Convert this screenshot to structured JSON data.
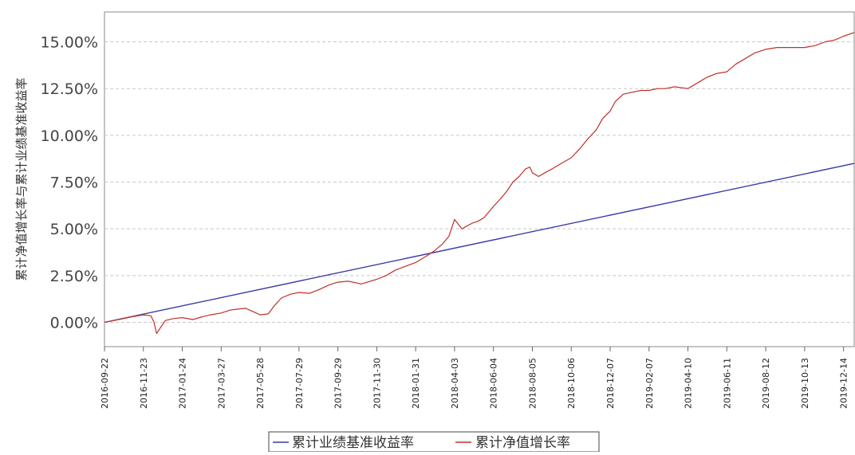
{
  "chart_data": {
    "type": "line",
    "title": "",
    "xlabel": "",
    "ylabel": "累计净值增长率与累计业绩基准收益率",
    "ylim": [
      -1.3,
      16.6
    ],
    "yticks": [
      "0.00%",
      "2.50%",
      "5.00%",
      "7.50%",
      "10.00%",
      "12.50%",
      "15.00%"
    ],
    "ytick_values": [
      0,
      2.5,
      5,
      7.5,
      10,
      12.5,
      15
    ],
    "x_start": "2016-09-22",
    "x_end": "2019-12-31",
    "xticks": [
      "2016-09-22",
      "2016-11-23",
      "2017-01-24",
      "2017-03-27",
      "2017-05-28",
      "2017-07-29",
      "2017-09-29",
      "2017-11-30",
      "2018-01-31",
      "2018-04-03",
      "2018-06-04",
      "2018-08-05",
      "2018-10-06",
      "2018-12-07",
      "2019-02-07",
      "2019-04-10",
      "2019-06-11",
      "2019-08-12",
      "2019-10-13",
      "2019-12-14"
    ],
    "grid": true,
    "legend_position": "bottom-center",
    "series": [
      {
        "name": "累计业绩基准收益率",
        "color": "#3a3aa8",
        "x": [
          "2016-09-22",
          "2019-12-31"
        ],
        "values": [
          0.0,
          8.5
        ]
      },
      {
        "name": "累计净值增长率",
        "color": "#c0302a",
        "x": [
          "2016-09-22",
          "2016-10-15",
          "2016-11-05",
          "2016-11-23",
          "2016-12-05",
          "2016-12-10",
          "2016-12-14",
          "2016-12-20",
          "2016-12-28",
          "2017-01-10",
          "2017-01-24",
          "2017-02-10",
          "2017-02-25",
          "2017-03-10",
          "2017-03-27",
          "2017-04-10",
          "2017-04-20",
          "2017-05-05",
          "2017-05-15",
          "2017-05-28",
          "2017-06-10",
          "2017-06-20",
          "2017-07-01",
          "2017-07-15",
          "2017-07-29",
          "2017-08-15",
          "2017-08-30",
          "2017-09-15",
          "2017-09-29",
          "2017-10-15",
          "2017-10-30",
          "2017-11-05",
          "2017-11-15",
          "2017-11-30",
          "2017-12-15",
          "2017-12-30",
          "2018-01-15",
          "2018-01-31",
          "2018-02-15",
          "2018-03-01",
          "2018-03-15",
          "2018-03-25",
          "2018-04-03",
          "2018-04-10",
          "2018-04-15",
          "2018-04-20",
          "2018-05-01",
          "2018-05-10",
          "2018-05-20",
          "2018-06-04",
          "2018-06-15",
          "2018-06-25",
          "2018-07-05",
          "2018-07-15",
          "2018-07-25",
          "2018-08-01",
          "2018-08-05",
          "2018-08-15",
          "2018-08-25",
          "2018-09-05",
          "2018-09-20",
          "2018-10-06",
          "2018-10-20",
          "2018-11-01",
          "2018-11-15",
          "2018-11-25",
          "2018-12-07",
          "2018-12-15",
          "2018-12-28",
          "2019-01-10",
          "2019-01-25",
          "2019-02-07",
          "2019-02-20",
          "2019-03-05",
          "2019-03-20",
          "2019-04-10",
          "2019-04-25",
          "2019-05-10",
          "2019-05-25",
          "2019-06-11",
          "2019-06-25",
          "2019-07-10",
          "2019-07-25",
          "2019-08-12",
          "2019-08-30",
          "2019-09-15",
          "2019-09-30",
          "2019-10-13",
          "2019-10-30",
          "2019-11-15",
          "2019-11-30",
          "2019-12-14",
          "2019-12-31"
        ],
        "values": [
          0.0,
          0.15,
          0.3,
          0.4,
          0.35,
          0.0,
          -0.6,
          -0.3,
          0.1,
          0.2,
          0.25,
          0.15,
          0.3,
          0.4,
          0.5,
          0.65,
          0.7,
          0.75,
          0.6,
          0.4,
          0.45,
          0.9,
          1.3,
          1.5,
          1.6,
          1.55,
          1.75,
          2.0,
          2.15,
          2.2,
          2.1,
          2.05,
          2.15,
          2.3,
          2.5,
          2.8,
          3.0,
          3.2,
          3.5,
          3.8,
          4.2,
          4.6,
          5.5,
          5.2,
          5.0,
          5.1,
          5.3,
          5.4,
          5.6,
          6.2,
          6.6,
          7.0,
          7.5,
          7.8,
          8.2,
          8.3,
          8.0,
          7.8,
          8.0,
          8.2,
          8.5,
          8.8,
          9.3,
          9.8,
          10.3,
          10.9,
          11.3,
          11.8,
          12.2,
          12.3,
          12.4,
          12.4,
          12.5,
          12.5,
          12.6,
          12.5,
          12.8,
          13.1,
          13.3,
          13.4,
          13.8,
          14.1,
          14.4,
          14.6,
          14.7,
          14.7,
          14.7,
          14.7,
          14.8,
          15.0,
          15.1,
          15.3,
          15.5
        ]
      }
    ]
  }
}
